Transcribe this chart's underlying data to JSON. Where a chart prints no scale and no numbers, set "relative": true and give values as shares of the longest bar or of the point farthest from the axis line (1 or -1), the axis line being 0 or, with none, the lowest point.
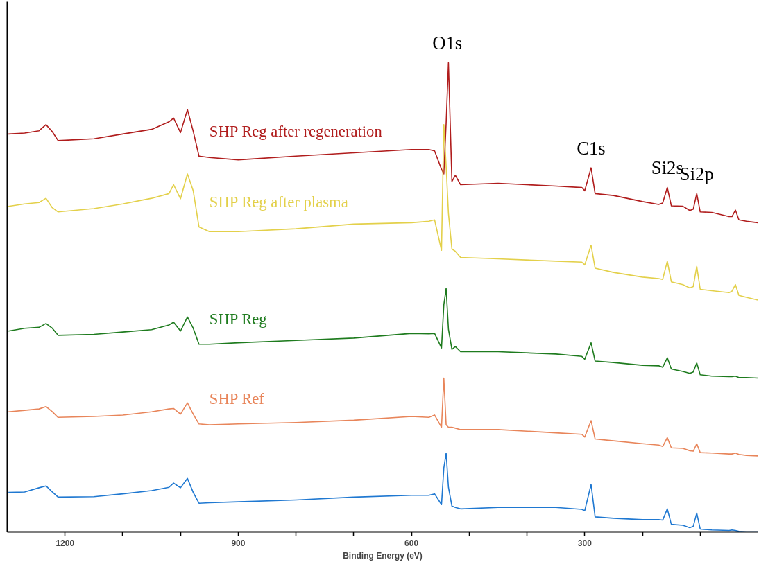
{
  "chart_data": {
    "type": "line",
    "xlabel": "Binding Energy (eV)",
    "relative": true,
    "xlim": [
      1300,
      0
    ],
    "xticks": [
      1200,
      {
        "value": 1100,
        "label": null
      },
      {
        "value": 1000,
        "label": null
      },
      900,
      {
        "value": 800,
        "label": null
      },
      {
        "value": 700,
        "label": null
      },
      600,
      {
        "value": 500,
        "label": null
      },
      {
        "value": 400,
        "label": null
      },
      300,
      {
        "value": 200,
        "label": null
      },
      {
        "value": 100,
        "label": null
      }
    ],
    "grid": false,
    "marker": "none",
    "line_style": "solid",
    "x": [
      1298,
      1270,
      1245,
      1233,
      1222,
      1212,
      1150,
      1100,
      1050,
      1020,
      1012,
      1000,
      988,
      978,
      968,
      950,
      900,
      800,
      700,
      600,
      570,
      560,
      548,
      544,
      540,
      536,
      530,
      524,
      515,
      450,
      350,
      305,
      300,
      289,
      282,
      250,
      200,
      172,
      165,
      157,
      150,
      130,
      118,
      112,
      106,
      100,
      80,
      50,
      45,
      39,
      33,
      20,
      0
    ],
    "series": [
      {
        "name": "SHP Reg after regeneration",
        "color": "#b01c1c",
        "values": [
          0.848,
          0.85,
          0.855,
          0.868,
          0.853,
          0.834,
          0.838,
          0.848,
          0.858,
          0.874,
          0.882,
          0.851,
          0.9,
          0.854,
          0.801,
          0.798,
          0.793,
          0.801,
          0.808,
          0.815,
          0.815,
          0.812,
          0.773,
          0.763,
          0.871,
          1,
          0.747,
          0.76,
          0.74,
          0.743,
          0.737,
          0.734,
          0.727,
          0.776,
          0.721,
          0.717,
          0.704,
          0.698,
          0.701,
          0.734,
          0.695,
          0.694,
          0.685,
          0.688,
          0.721,
          0.682,
          0.681,
          0.672,
          0.672,
          0.686,
          0.665,
          0.662,
          0.659
        ]
      },
      {
        "name": "SHP Reg after plasma",
        "color": "#e3d04a",
        "values": [
          0.694,
          0.699,
          0.702,
          0.711,
          0.691,
          0.682,
          0.689,
          0.699,
          0.711,
          0.721,
          0.74,
          0.71,
          0.763,
          0.727,
          0.65,
          0.64,
          0.64,
          0.646,
          0.656,
          0.659,
          0.662,
          0.665,
          0.6,
          0.868,
          0.78,
          0.679,
          0.603,
          0.598,
          0.585,
          0.582,
          0.577,
          0.575,
          0.569,
          0.611,
          0.562,
          0.553,
          0.543,
          0.54,
          0.538,
          0.577,
          0.533,
          0.527,
          0.52,
          0.523,
          0.566,
          0.517,
          0.514,
          0.51,
          0.513,
          0.527,
          0.504,
          0.5,
          0.494
        ]
      },
      {
        "name": "SHP Reg",
        "color": "#1e7b1e",
        "values": [
          0.428,
          0.434,
          0.436,
          0.444,
          0.434,
          0.419,
          0.421,
          0.426,
          0.431,
          0.441,
          0.447,
          0.428,
          0.458,
          0.434,
          0.4,
          0.4,
          0.403,
          0.408,
          0.413,
          0.423,
          0.422,
          0.423,
          0.392,
          0.484,
          0.519,
          0.432,
          0.389,
          0.395,
          0.384,
          0.384,
          0.379,
          0.374,
          0.368,
          0.403,
          0.364,
          0.361,
          0.355,
          0.354,
          0.351,
          0.371,
          0.347,
          0.342,
          0.338,
          0.341,
          0.36,
          0.335,
          0.332,
          0.331,
          0.331,
          0.332,
          0.329,
          0.329,
          0.328
        ]
      },
      {
        "name": "SHP Ref",
        "color": "#e8855a",
        "values": [
          0.256,
          0.259,
          0.262,
          0.267,
          0.256,
          0.244,
          0.246,
          0.249,
          0.256,
          0.262,
          0.263,
          0.251,
          0.275,
          0.251,
          0.23,
          0.228,
          0.23,
          0.233,
          0.238,
          0.246,
          0.244,
          0.249,
          0.223,
          0.328,
          0.228,
          0.223,
          0.223,
          0.221,
          0.218,
          0.218,
          0.211,
          0.208,
          0.202,
          0.237,
          0.198,
          0.194,
          0.188,
          0.185,
          0.182,
          0.201,
          0.179,
          0.178,
          0.173,
          0.172,
          0.188,
          0.169,
          0.168,
          0.166,
          0.166,
          0.168,
          0.165,
          0.163,
          0.162
        ]
      },
      {
        "color": "#1f78d1",
        "values": [
          0.084,
          0.085,
          0.094,
          0.098,
          0.085,
          0.074,
          0.075,
          0.081,
          0.088,
          0.095,
          0.104,
          0.094,
          0.114,
          0.084,
          0.061,
          0.062,
          0.064,
          0.068,
          0.074,
          0.078,
          0.078,
          0.081,
          0.058,
          0.136,
          0.168,
          0.095,
          0.055,
          0.052,
          0.049,
          0.052,
          0.052,
          0.048,
          0.045,
          0.101,
          0.032,
          0.029,
          0.026,
          0.026,
          0.025,
          0.049,
          0.016,
          0.014,
          0.009,
          0.012,
          0.04,
          0.006,
          0.004,
          0.003,
          0.004,
          0.003,
          0.001,
          0,
          0
        ]
      }
    ],
    "annotations": [
      {
        "text": "O1s",
        "x": 538,
        "y": 1
      },
      {
        "text": "C1s",
        "x": 289,
        "y": 0.776
      },
      {
        "text": "Si2s",
        "x": 157,
        "y": 0.734
      },
      {
        "text": "Si2p",
        "x": 106,
        "y": 0.721
      }
    ]
  }
}
